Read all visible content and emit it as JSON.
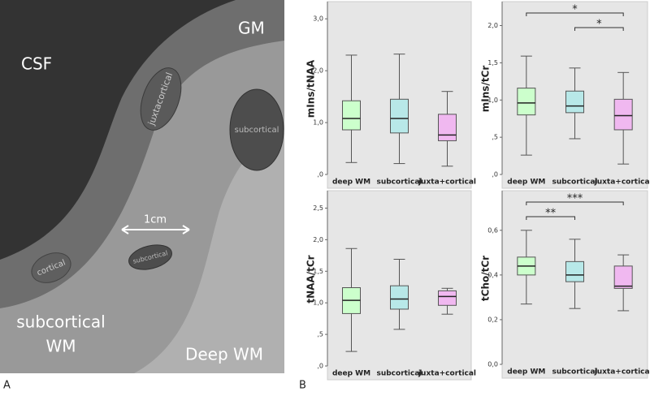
{
  "panel_labels": {
    "a": "A",
    "b": "B"
  },
  "diagram": {
    "regions": {
      "csf": "CSF",
      "gm": "GM",
      "subcortical_wm": [
        "subcortical",
        "WM"
      ],
      "deep_wm": "Deep WM"
    },
    "rois": [
      "juxtacortical",
      "subcortical",
      "cortical",
      "subcortical"
    ],
    "scale_bar": "1cm"
  },
  "chart_data": [
    {
      "type": "box",
      "y_label": "mIns/tNAA",
      "categories": [
        "deep WM",
        "subcortical",
        "juxta+cortical"
      ],
      "colors": [
        "#ccffcc",
        "#b8e8e8",
        "#f0b8f0"
      ],
      "boxes": [
        {
          "min": 0.23,
          "q1": 0.86,
          "median": 1.08,
          "q3": 1.42,
          "max": 2.3
        },
        {
          "min": 0.21,
          "q1": 0.8,
          "median": 1.08,
          "q3": 1.45,
          "max": 2.32
        },
        {
          "min": 0.16,
          "q1": 0.65,
          "median": 0.76,
          "q3": 1.16,
          "max": 1.6
        }
      ],
      "ylim": [
        0,
        3.3
      ],
      "yticks": [
        {
          "value": 0,
          "label": ",0"
        },
        {
          "value": 1,
          "label": "1,0"
        },
        {
          "value": 2,
          "label": "2,0"
        },
        {
          "value": 3,
          "label": "3,0"
        }
      ]
    },
    {
      "type": "box",
      "y_label": "mIns/tCr",
      "categories": [
        "deep WM",
        "subcortical",
        "juxta+cortical"
      ],
      "colors": [
        "#ccffcc",
        "#b8e8e8",
        "#f0b8f0"
      ],
      "boxes": [
        {
          "min": 0.26,
          "q1": 0.8,
          "median": 0.96,
          "q3": 1.16,
          "max": 1.59
        },
        {
          "min": 0.48,
          "q1": 0.83,
          "median": 0.92,
          "q3": 1.12,
          "max": 1.43
        },
        {
          "min": 0.14,
          "q1": 0.6,
          "median": 0.79,
          "q3": 1.01,
          "max": 1.37
        }
      ],
      "ylim": [
        0,
        2.3
      ],
      "yticks": [
        {
          "value": 0,
          "label": ",0"
        },
        {
          "value": 0.5,
          "label": ",5"
        },
        {
          "value": 1,
          "label": "1,0"
        },
        {
          "value": 1.5,
          "label": "1,5"
        },
        {
          "value": 2,
          "label": "2,0"
        }
      ],
      "annotations": [
        {
          "text": "*",
          "between": [
            "deep WM",
            "juxta+cortical"
          ]
        },
        {
          "text": "*",
          "between": [
            "subcortical",
            "juxta+cortical"
          ]
        }
      ]
    },
    {
      "type": "box",
      "y_label": "tNAA/tCr",
      "categories": [
        "deep WM",
        "subcortical",
        "juxta+cortical"
      ],
      "colors": [
        "#ccffcc",
        "#b8e8e8",
        "#f0b8f0"
      ],
      "boxes": [
        {
          "min": 0.23,
          "q1": 0.83,
          "median": 1.04,
          "q3": 1.24,
          "max": 1.86
        },
        {
          "min": 0.58,
          "q1": 0.9,
          "median": 1.06,
          "q3": 1.27,
          "max": 1.69
        },
        {
          "min": 0.82,
          "q1": 0.96,
          "median": 1.1,
          "q3": 1.19,
          "max": 1.23
        }
      ],
      "ylim": [
        0,
        2.75
      ],
      "yticks": [
        {
          "value": 0,
          "label": ",0"
        },
        {
          "value": 0.5,
          "label": ",5"
        },
        {
          "value": 1,
          "label": "1,0"
        },
        {
          "value": 1.5,
          "label": "1,5"
        },
        {
          "value": 2,
          "label": "2,0"
        },
        {
          "value": 2.5,
          "label": "2,5"
        }
      ]
    },
    {
      "type": "box",
      "y_label": "tCho/tCr",
      "categories": [
        "deep WM",
        "subcortical",
        "juxta+cortical"
      ],
      "colors": [
        "#ccffcc",
        "#b8e8e8",
        "#f0b8f0"
      ],
      "boxes": [
        {
          "min": 0.27,
          "q1": 0.4,
          "median": 0.44,
          "q3": 0.48,
          "max": 0.6
        },
        {
          "min": 0.25,
          "q1": 0.37,
          "median": 0.4,
          "q3": 0.46,
          "max": 0.56
        },
        {
          "min": 0.24,
          "q1": 0.34,
          "median": 0.35,
          "q3": 0.44,
          "max": 0.49
        }
      ],
      "ylim": [
        0,
        0.77
      ],
      "yticks": [
        {
          "value": 0,
          "label": "0,0"
        },
        {
          "value": 0.2,
          "label": "0,2"
        },
        {
          "value": 0.4,
          "label": "0,4"
        },
        {
          "value": 0.6,
          "label": "0,6"
        }
      ],
      "annotations": [
        {
          "text": "**",
          "between": [
            "deep WM",
            "subcortical"
          ]
        },
        {
          "text": "***",
          "between": [
            "deep WM",
            "juxta+cortical"
          ]
        }
      ]
    }
  ]
}
